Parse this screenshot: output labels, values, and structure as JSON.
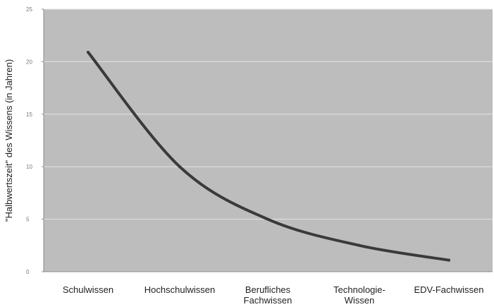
{
  "chart_data": {
    "type": "line",
    "title": "",
    "xlabel": "",
    "ylabel": "\"Halbwertszeit\" des Wissens (in Jahren)",
    "categories": [
      [
        "Schulwissen"
      ],
      [
        "Hochschulwissen"
      ],
      [
        "Berufliches",
        "Fachwissen"
      ],
      [
        "Technologie-",
        "Wissen"
      ],
      [
        "EDV-Fachwissen"
      ]
    ],
    "series": [
      {
        "values": [
          20.9,
          10.0,
          5.0,
          2.5,
          1.1
        ]
      }
    ],
    "yticks": [
      "0",
      "5",
      "10",
      "15",
      "20",
      "25"
    ],
    "ylim": [
      0,
      25
    ],
    "grid": true,
    "colors": {
      "plot_bg": "#bdbdbd",
      "line": "#3a3a3a",
      "grid": "#e4e4e4",
      "axis": "#8c8c8c"
    }
  }
}
